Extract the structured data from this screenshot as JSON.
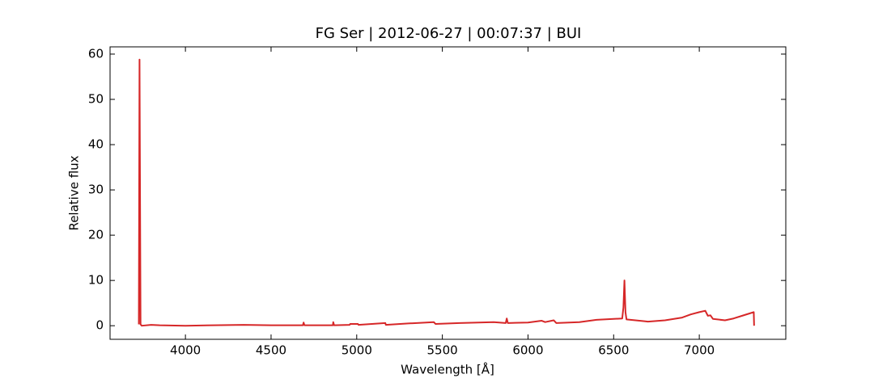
{
  "chart_data": {
    "type": "line",
    "title": "FG Ser | 2012-06-27 | 00:07:37 | BUI",
    "x_label": "Wavelength [Å]",
    "y_label": "Relative flux",
    "xlim": [
      3560,
      7505
    ],
    "ylim": [
      -3.0,
      61.6
    ],
    "xticks": [
      4000,
      4500,
      5000,
      5500,
      6000,
      6500,
      7000
    ],
    "yticks": [
      0,
      10,
      20,
      30,
      40,
      50,
      60
    ],
    "grid": false,
    "series": [
      {
        "color": "#d62728",
        "x": [
          3728,
          3732,
          3738,
          3745,
          3800,
          3850,
          4000,
          4340,
          4500,
          4686,
          4690,
          4695,
          4861,
          4863,
          4868,
          4959,
          4962,
          5007,
          5010,
          5167,
          5170,
          5300,
          5450,
          5460,
          5600,
          5800,
          5870,
          5876,
          5882,
          6000,
          6080,
          6100,
          6150,
          6165,
          6300,
          6400,
          6500,
          6550,
          6557,
          6563,
          6569,
          6575,
          6680,
          6700,
          6800,
          6900,
          6950,
          7000,
          7035,
          7050,
          7065,
          7080,
          7150,
          7200,
          7250,
          7318,
          7320
        ],
        "values": [
          0.3,
          58.8,
          0.3,
          0.0,
          0.2,
          0.1,
          0.0,
          0.2,
          0.1,
          0.1,
          0.7,
          0.1,
          0.1,
          0.8,
          0.1,
          0.2,
          0.4,
          0.4,
          0.2,
          0.6,
          0.2,
          0.5,
          0.8,
          0.4,
          0.6,
          0.8,
          0.6,
          1.6,
          0.6,
          0.7,
          1.1,
          0.8,
          1.2,
          0.6,
          0.8,
          1.3,
          1.5,
          1.6,
          4.0,
          10.0,
          3.0,
          1.4,
          1.0,
          0.9,
          1.2,
          1.8,
          2.5,
          3.0,
          3.3,
          2.2,
          2.3,
          1.5,
          1.2,
          1.6,
          2.2,
          3.0,
          0.0
        ]
      }
    ]
  }
}
